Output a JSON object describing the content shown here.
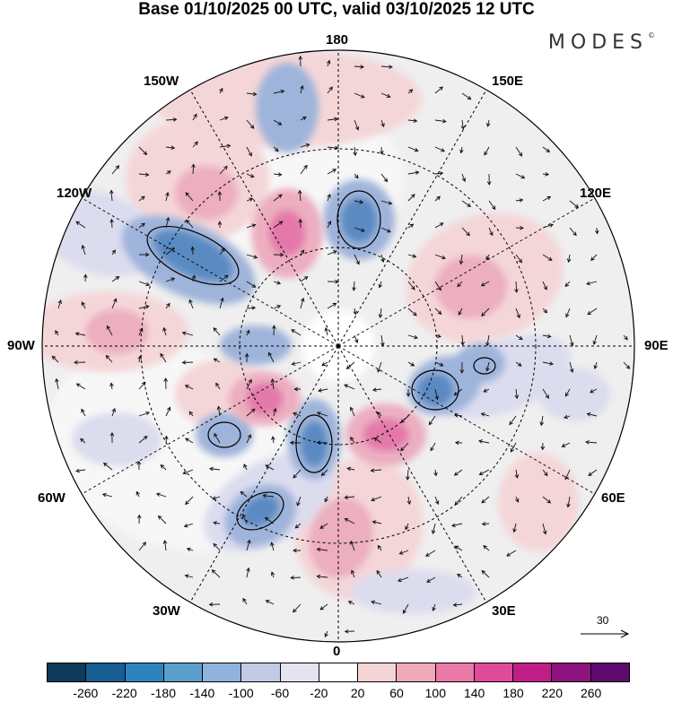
{
  "title": "Base 01/10/2025 00 UTC, valid 03/10/2025 12 UTC",
  "brand": "MODES",
  "brand_mark": "©",
  "longitude_labels": {
    "l180": "180",
    "l150w": "150W",
    "l150e": "150E",
    "l120w": "120W",
    "l120e": "120E",
    "l90w": "90W",
    "l90e": "90E",
    "l60w": "60W",
    "l60e": "60E",
    "l30w": "30W",
    "l30e": "30E",
    "l0": "0"
  },
  "vector_scale": "30",
  "colorbar": {
    "colors": [
      "#0e3a5c",
      "#175e93",
      "#2b84bf",
      "#5a9ece",
      "#8fb3dd",
      "#c2cbe6",
      "#e4e4f1",
      "#ffffff",
      "#f5d4d5",
      "#f0a9b8",
      "#eb79a8",
      "#de4b9b",
      "#c01d88",
      "#8d137f",
      "#5e0a6e"
    ],
    "ticks": [
      "-260",
      "-220",
      "-180",
      "-140",
      "-100",
      "-60",
      "-20",
      "20",
      "60",
      "100",
      "140",
      "180",
      "220",
      "260"
    ]
  },
  "anomaly_colors": {
    "neg_strong": "#5a8ac2",
    "neg_mid": "#9fb4da",
    "neg_light": "#dcdcef",
    "pos_light": "#f4d6d8",
    "pos_mid": "#ecaec0",
    "pos_strong": "#e479a9",
    "land": "#e8e8e8"
  }
}
